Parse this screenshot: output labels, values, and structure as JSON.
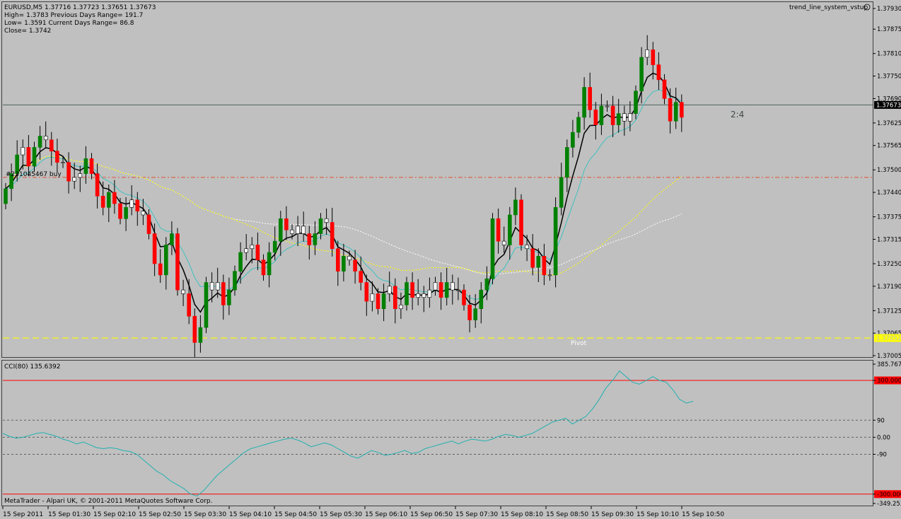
{
  "header": {
    "line1": "EURUSD,M5  1.37716 1.37723 1.37651 1.37673",
    "line2": "High= 1.3783    Previous Days Range= 191.7",
    "line3": "Low= 1.3591    Current Days Range= 86.8",
    "line4": "Close= 1.3742"
  },
  "indicator_name": "trend_line_system_vstup",
  "footer": {
    "copyright": "MetaTrader - Alpari UK, © 2001-2011 MetaQuotes Software Corp."
  },
  "annotations": {
    "order_label": "#231045467 buy",
    "pivot_label": "Pivot",
    "ratio_label": "2:4"
  },
  "colors": {
    "background": "#c0c0c0",
    "bull": "#008000",
    "bear": "#ff0000",
    "doji": "#ffffff",
    "ema_fast": "#000000",
    "ema_slow": "#40c0c0",
    "ma_yellow": "#ffff00",
    "ma_white": "#ffffff",
    "cci": "#20b0b0",
    "pivot": "#ffff00",
    "order_line": "#e05030",
    "cci_level": "#ff0000"
  },
  "chart_data": [
    {
      "type": "candlestick",
      "symbol": "EURUSD",
      "timeframe": "M5",
      "y_ticks": [
        "1.37930",
        "1.37875",
        "1.37810",
        "1.37750",
        "1.37690",
        "1.37625",
        "1.37565",
        "1.37500",
        "1.37440",
        "1.37375",
        "1.37315",
        "1.37250",
        "1.37190",
        "1.37125",
        "1.37065",
        "1.37005"
      ],
      "ylim": [
        1.37005,
        1.3793
      ],
      "current_price": "1.37673",
      "pivot_price": "1.37052",
      "order_price": 1.3748,
      "x_ticks": [
        "15 Sep 2011",
        "15 Sep 01:30",
        "15 Sep 02:10",
        "15 Sep 02:50",
        "15 Sep 03:30",
        "15 Sep 04:10",
        "15 Sep 04:50",
        "15 Sep 05:30",
        "15 Sep 06:10",
        "15 Sep 06:50",
        "15 Sep 07:30",
        "15 Sep 08:10",
        "15 Sep 08:50",
        "15 Sep 09:30",
        "15 Sep 10:10",
        "15 Sep 10:50"
      ],
      "close": [
        1.3745,
        1.3749,
        1.3754,
        1.3756,
        1.3751,
        1.3756,
        1.3759,
        1.3758,
        1.3755,
        1.3752,
        1.3752,
        1.3747,
        1.3748,
        1.3749,
        1.3753,
        1.3749,
        1.3743,
        1.374,
        1.3744,
        1.3741,
        1.3737,
        1.374,
        1.3742,
        1.3739,
        1.3738,
        1.3733,
        1.3725,
        1.3722,
        1.373,
        1.3733,
        1.3718,
        1.3717,
        1.3711,
        1.3704,
        1.3708,
        1.372,
        1.3718,
        1.372,
        1.3714,
        1.3718,
        1.3723,
        1.3728,
        1.3729,
        1.373,
        1.3726,
        1.3722,
        1.3728,
        1.3731,
        1.3737,
        1.3734,
        1.3733,
        1.3735,
        1.3733,
        1.373,
        1.3733,
        1.3737,
        1.3736,
        1.3729,
        1.3723,
        1.3727,
        1.3726,
        1.3723,
        1.372,
        1.3715,
        1.3717,
        1.3713,
        1.3717,
        1.3719,
        1.3713,
        1.3714,
        1.372,
        1.3716,
        1.3717,
        1.3716,
        1.3718,
        1.372,
        1.3716,
        1.372,
        1.3718,
        1.3718,
        1.3714,
        1.371,
        1.3713,
        1.3718,
        1.3721,
        1.3737,
        1.3731,
        1.373,
        1.3738,
        1.3742,
        1.373,
        1.3729,
        1.3724,
        1.3727,
        1.3722,
        1.3722,
        1.374,
        1.3748,
        1.3756,
        1.376,
        1.3764,
        1.3772,
        1.3766,
        1.3762,
        1.3767,
        1.3767,
        1.3762,
        1.3765,
        1.3763,
        1.3765,
        1.3771,
        1.378,
        1.3782,
        1.3778,
        1.3774,
        1.3769,
        1.3763,
        1.3768,
        1.3764
      ]
    },
    {
      "type": "line",
      "title": "CCI(80) 135.6392",
      "y_ticks": [
        "385.7670",
        "300.0000",
        "90",
        "0.00",
        "-90",
        "-300.0000",
        "-349.2535"
      ],
      "levels": [
        300,
        90,
        0,
        -90,
        -300
      ],
      "ylim": [
        -349.2535,
        385.767
      ],
      "values": [
        20,
        5,
        -5,
        0,
        10,
        20,
        25,
        15,
        5,
        -10,
        -20,
        -35,
        -25,
        -40,
        -55,
        -60,
        -55,
        -60,
        -70,
        -75,
        -90,
        -120,
        -150,
        -180,
        -200,
        -230,
        -250,
        -270,
        -300,
        -310,
        -280,
        -240,
        -200,
        -170,
        -140,
        -110,
        -80,
        -60,
        -50,
        -40,
        -30,
        -20,
        -10,
        -5,
        -15,
        -30,
        -50,
        -40,
        -30,
        -40,
        -60,
        -80,
        -100,
        -110,
        -90,
        -70,
        -80,
        -95,
        -90,
        -80,
        -70,
        -85,
        -80,
        -60,
        -50,
        -40,
        -30,
        -20,
        -35,
        -20,
        -10,
        -15,
        -20,
        -10,
        5,
        15,
        10,
        0,
        10,
        20,
        40,
        60,
        80,
        90,
        100,
        70,
        90,
        110,
        150,
        200,
        260,
        300,
        350,
        320,
        290,
        280,
        300,
        320,
        300,
        290,
        250,
        200,
        180,
        190
      ]
    }
  ]
}
